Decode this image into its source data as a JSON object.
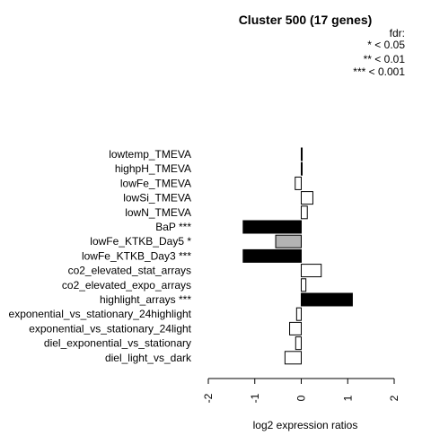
{
  "chart_data": {
    "type": "bar",
    "orientation": "horizontal",
    "title": "Cluster 500 (17 genes)",
    "xlabel": "log2 expression ratios",
    "ylabel": "",
    "xlim": [
      -2,
      2
    ],
    "xticks": [
      "-2",
      "-1",
      "0",
      "1",
      "2"
    ],
    "legend": {
      "title": "fdr:",
      "entries": [
        "* < 0.05",
        "** < 0.01",
        "*** < 0.001"
      ],
      "placement": "top-right"
    },
    "categories": [
      "lowtemp_TMEVA",
      "highpH_TMEVA",
      "lowFe_TMEVA",
      "lowSi_TMEVA",
      "lowN_TMEVA",
      "BaP ***",
      "lowFe_KTKB_Day5 *",
      "lowFe_KTKB_Day3 ***",
      "co2_elevated_stat_arrays",
      "co2_elevated_expo_arrays",
      "highlight_arrays ***",
      "exponential_vs_stationary_24highlight",
      "exponential_vs_stationary_24light",
      "diel_exponential_vs_stationary",
      "diel_light_vs_dark"
    ],
    "values": [
      0.02,
      0.01,
      -0.13,
      0.25,
      0.13,
      -1.25,
      -0.55,
      -1.25,
      0.43,
      0.1,
      1.1,
      -0.1,
      -0.25,
      -0.12,
      -0.35
    ],
    "significance": [
      "none",
      "none",
      "none",
      "none",
      "none",
      "***",
      "*",
      "***",
      "none",
      "none",
      "***",
      "none",
      "none",
      "none",
      "none"
    ],
    "colors": {
      "none": "#ffffff",
      "*": "#b3b3b3",
      "***": "#000000",
      "outline": "#000000"
    }
  }
}
